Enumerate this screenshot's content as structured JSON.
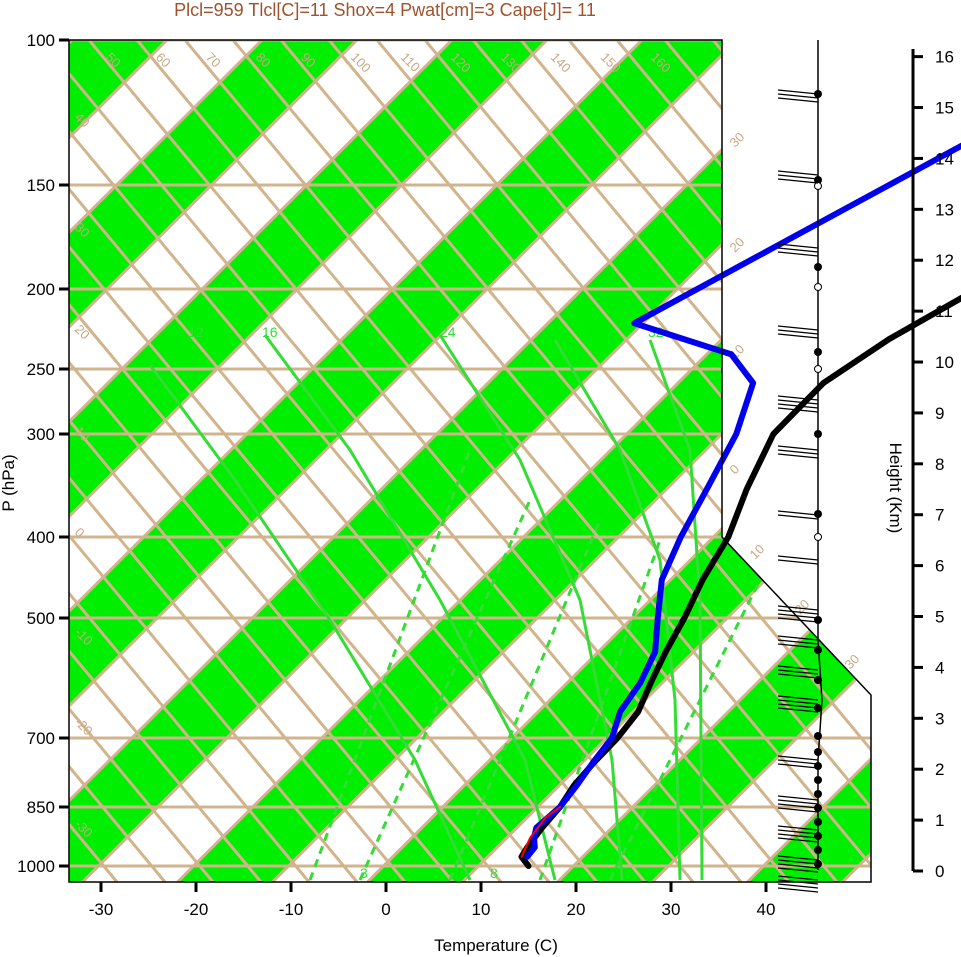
{
  "title": "Plcl=959 Tlcl[C]=11 Shox=4 Pwat[cm]=3 Cape[J]= 11",
  "colors": {
    "title": "#a0522d",
    "background_grid": "#d2b48c",
    "band": "#00ee00",
    "mixing_ratio": "#33dd33",
    "temperature": "#000000",
    "dewpoint": "#0000ee",
    "parcel": "#ff0000",
    "frame": "#000000"
  },
  "chart_data": {
    "type": "skew-t log-p sounding",
    "title": "Plcl=959 Tlcl[C]=11 Shox=4 Pwat[cm]=3 Cape[J]= 11",
    "xlabel": "Temperature (C)",
    "ylabel": "P (hPa)",
    "y2label": "Height (Km)",
    "x_ticks": [
      -30,
      -20,
      -10,
      0,
      10,
      20,
      30,
      40
    ],
    "pressure_ticks": [
      100,
      150,
      200,
      250,
      300,
      400,
      500,
      700,
      850,
      1000
    ],
    "height_ticks": [
      0,
      1,
      2,
      3,
      4,
      5,
      6,
      7,
      8,
      9,
      10,
      11,
      12,
      13,
      14,
      15,
      16
    ],
    "log_scale_y": true,
    "isotherm_labels_top": [
      "50",
      "60",
      "70",
      "80",
      "90",
      "100",
      "110",
      "120",
      "130",
      "140",
      "150",
      "160"
    ],
    "isotherm_labels_left": [
      "40",
      "30",
      "20",
      "10",
      "0",
      "-10",
      "-20",
      "-30"
    ],
    "isotherm_labels_right": [
      "30",
      "20",
      "10",
      "0",
      "10",
      "20",
      "30"
    ],
    "mixing_ratio_labels_upper": [
      "12",
      "16",
      "24",
      "32"
    ],
    "mixing_ratio_labels_lower": [
      "3",
      "8"
    ],
    "temperature_profile": [
      {
        "p": 1000,
        "t": 15.0
      },
      {
        "p": 975,
        "t": 13.3
      },
      {
        "p": 950,
        "t": 12.9
      },
      {
        "p": 900,
        "t": 12.4
      },
      {
        "p": 850,
        "t": 12.1
      },
      {
        "p": 800,
        "t": 11.3
      },
      {
        "p": 750,
        "t": 11.0
      },
      {
        "p": 700,
        "t": 10.9
      },
      {
        "p": 650,
        "t": 10.3
      },
      {
        "p": 600,
        "t": 8.6
      },
      {
        "p": 550,
        "t": 6.9
      },
      {
        "p": 500,
        "t": 5.3
      },
      {
        "p": 450,
        "t": 3.2
      },
      {
        "p": 400,
        "t": 1.4
      },
      {
        "p": 350,
        "t": -1.7
      },
      {
        "p": 300,
        "t": -4.7
      },
      {
        "p": 260,
        "t": -4.8
      },
      {
        "p": 230,
        "t": -2.5
      },
      {
        "p": 200,
        "t": 1.5
      },
      {
        "p": 175,
        "t": 5.8
      },
      {
        "p": 150,
        "t": 8.8
      },
      {
        "p": 135,
        "t": 10.4
      },
      {
        "p": 120,
        "t": 13.2
      },
      {
        "p": 110,
        "t": 15.4
      },
      {
        "p": 105,
        "t": 16.8
      }
    ],
    "dewpoint_profile": [
      {
        "p": 975,
        "t": 13.9
      },
      {
        "p": 950,
        "t": 13.7
      },
      {
        "p": 925,
        "t": 12.6
      },
      {
        "p": 900,
        "t": 11.8
      },
      {
        "p": 850,
        "t": 12.1
      },
      {
        "p": 800,
        "t": 11.6
      },
      {
        "p": 750,
        "t": 10.9
      },
      {
        "p": 700,
        "t": 10.3
      },
      {
        "p": 650,
        "t": 8.4
      },
      {
        "p": 600,
        "t": 7.5
      },
      {
        "p": 550,
        "t": 5.8
      },
      {
        "p": 500,
        "t": 2.5
      },
      {
        "p": 450,
        "t": -1.1
      },
      {
        "p": 400,
        "t": -3.6
      },
      {
        "p": 350,
        "t": -5.9
      },
      {
        "p": 300,
        "t": -8.6
      },
      {
        "p": 260,
        "t": -12.2
      },
      {
        "p": 240,
        "t": -17.5
      },
      {
        "p": 220,
        "t": -31.0
      },
      {
        "p": 105,
        "t": -7.4
      }
    ],
    "parcel_profile": [
      {
        "p": 975,
        "t": 13.3
      },
      {
        "p": 925,
        "t": 12.2
      },
      {
        "p": 875,
        "t": 11.7
      },
      {
        "p": 850,
        "t": 12.1
      }
    ]
  }
}
